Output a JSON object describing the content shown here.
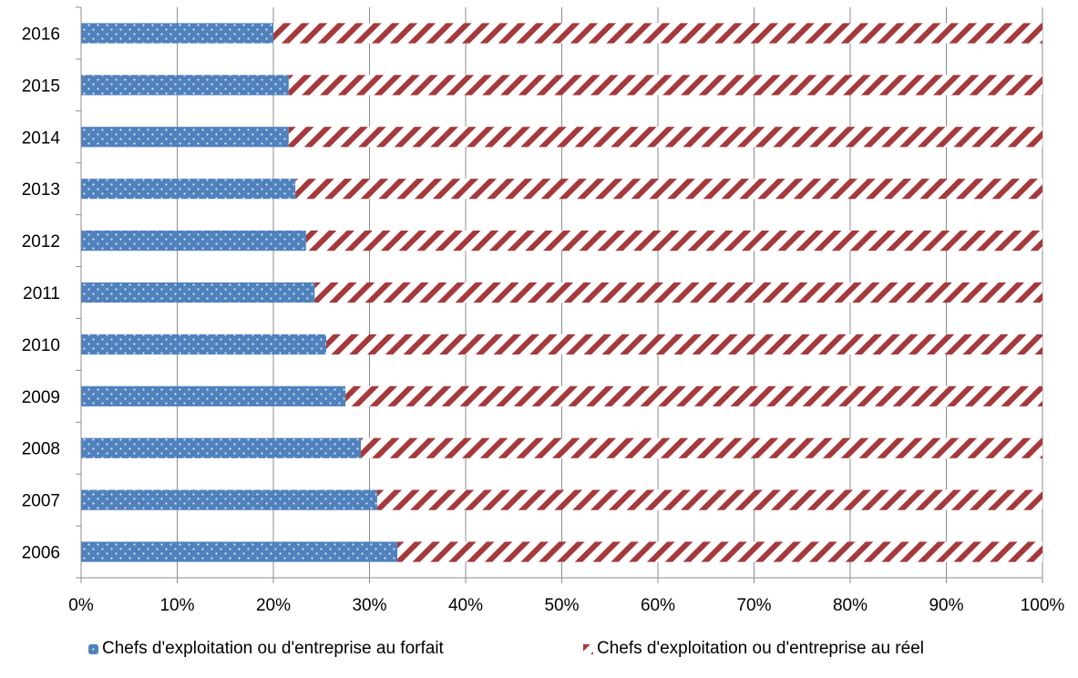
{
  "chart_data": {
    "type": "bar",
    "orientation": "horizontal",
    "stacked": true,
    "percent_stacked": true,
    "categories": [
      "2006",
      "2007",
      "2008",
      "2009",
      "2010",
      "2011",
      "2012",
      "2013",
      "2014",
      "2015",
      "2016"
    ],
    "series": [
      {
        "name": "Chefs d'exploitation ou d'entreprise au forfait",
        "values": [
          32.9,
          30.8,
          29.1,
          27.5,
          25.5,
          24.3,
          23.4,
          22.3,
          21.6,
          21.6,
          20.0
        ],
        "color": "#4f81bd",
        "pattern": "dotted"
      },
      {
        "name": "Chefs d'exploitation ou d'entreprise au réel",
        "values": [
          67.1,
          69.2,
          70.9,
          72.5,
          74.5,
          75.7,
          76.6,
          77.7,
          78.4,
          78.4,
          80.0
        ],
        "color": "#a5393b",
        "pattern": "diagonal-stripes"
      }
    ],
    "x_ticks": [
      "0%",
      "10%",
      "20%",
      "30%",
      "40%",
      "50%",
      "60%",
      "70%",
      "80%",
      "90%",
      "100%"
    ],
    "xlim": [
      0,
      100
    ],
    "grid": true,
    "legend_position": "bottom"
  }
}
